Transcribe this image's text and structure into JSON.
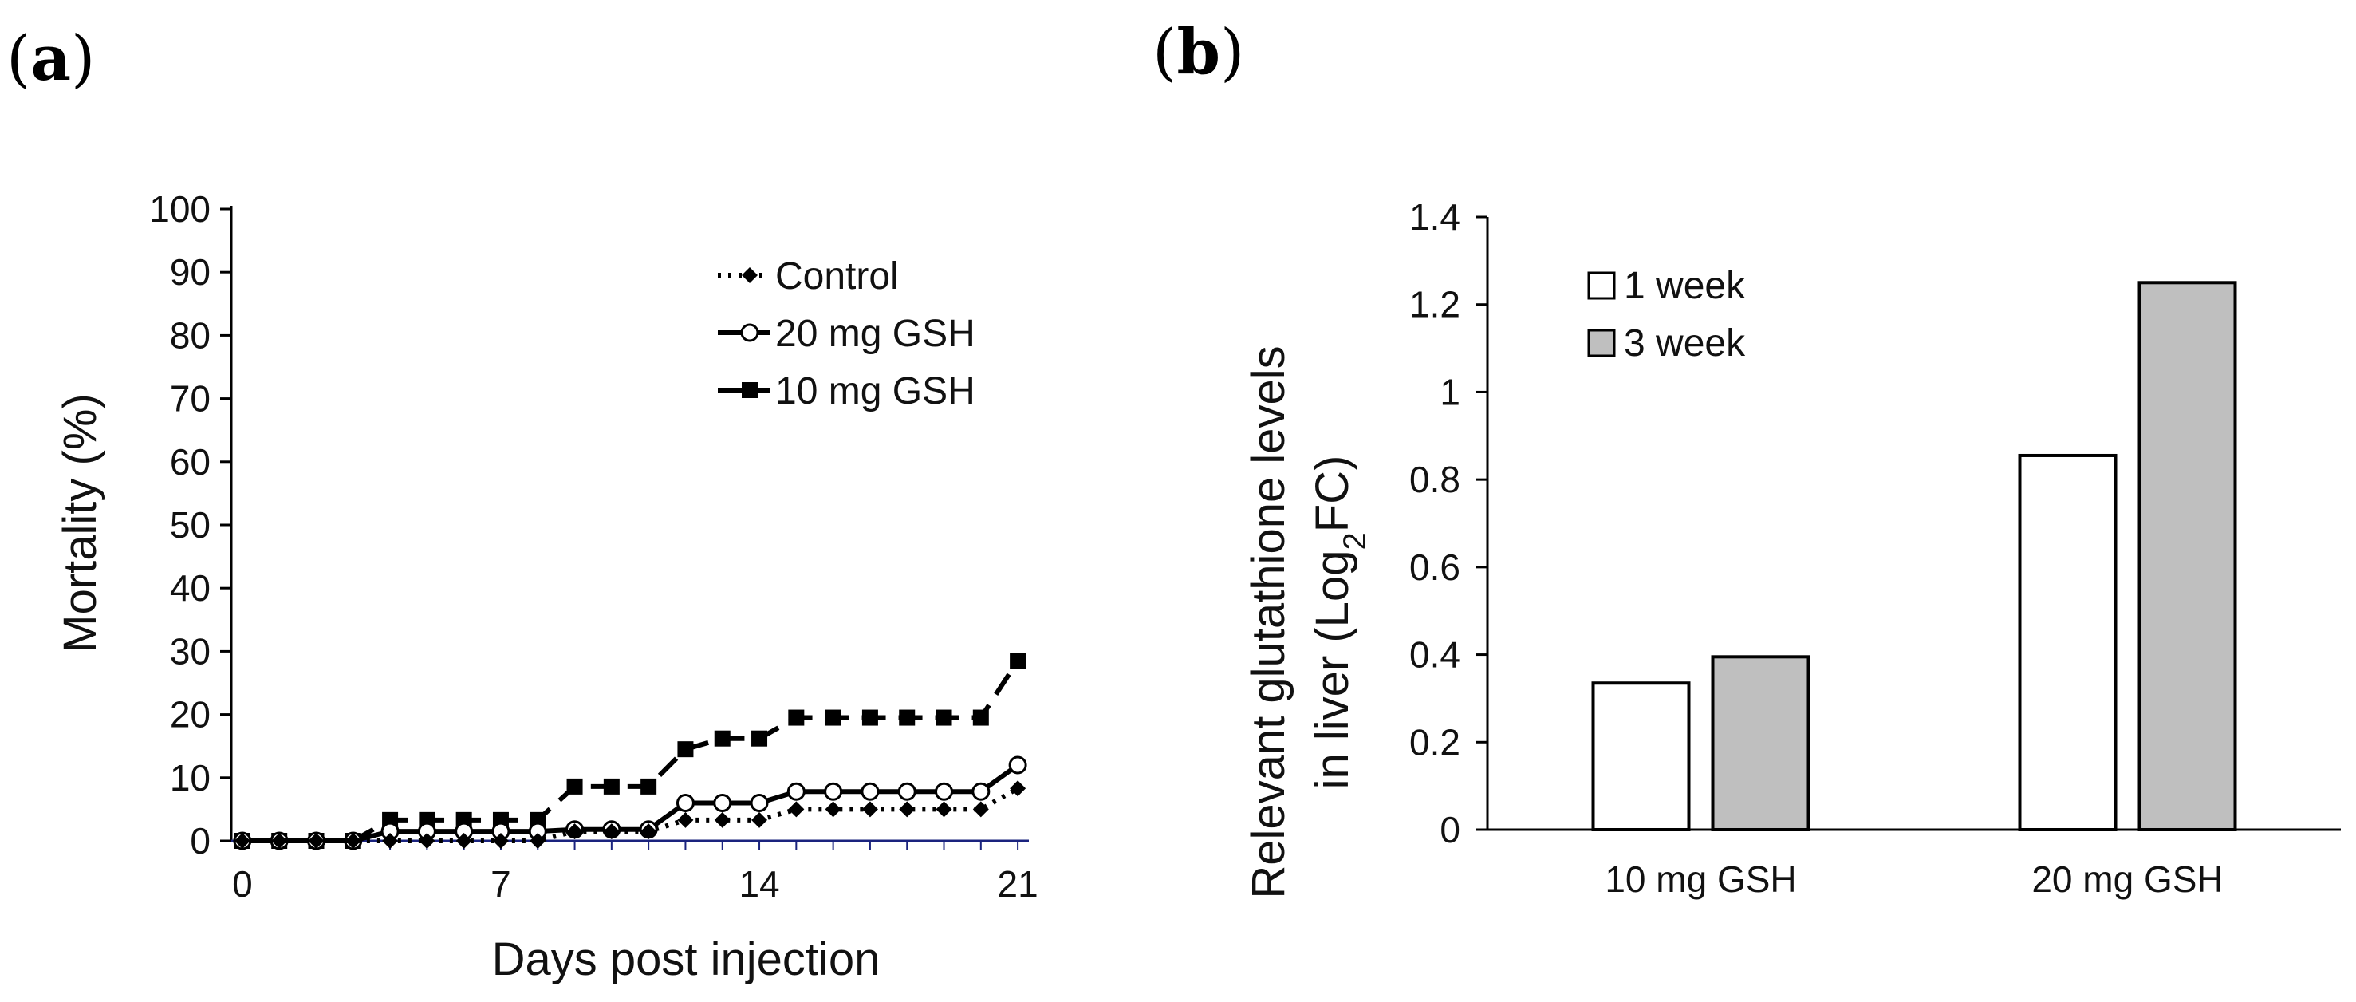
{
  "chart_data": [
    {
      "panel_label": "a",
      "type": "line",
      "xlabel": "Days post injection",
      "ylabel": "Mortality (%)",
      "xlim": [
        -0.3,
        21.3
      ],
      "ylim": [
        0,
        100
      ],
      "xticks": [
        0,
        7,
        14,
        21
      ],
      "yticks": [
        0,
        10,
        20,
        30,
        40,
        50,
        60,
        70,
        80,
        90,
        100
      ],
      "legend_position": "top-right",
      "x": [
        0,
        1,
        2,
        3,
        4,
        5,
        6,
        7,
        8,
        9,
        10,
        11,
        12,
        13,
        14,
        15,
        16,
        17,
        18,
        19,
        20,
        21
      ],
      "series": [
        {
          "name": "Control",
          "style": "dotted",
          "marker": "diamond",
          "values": [
            0,
            0,
            0,
            0,
            0,
            0,
            0,
            0,
            0,
            1.5,
            1.5,
            1.5,
            3.3,
            3.3,
            3.3,
            5,
            5,
            5,
            5,
            5,
            5,
            8.3
          ]
        },
        {
          "name": "20 mg GSH",
          "style": "solid",
          "marker": "circle",
          "values": [
            0,
            0,
            0,
            0,
            1.5,
            1.5,
            1.5,
            1.5,
            1.5,
            1.8,
            1.8,
            1.8,
            6,
            6,
            6,
            7.8,
            7.8,
            7.8,
            7.8,
            7.8,
            7.8,
            12
          ]
        },
        {
          "name": "10 mg GSH",
          "style": "dashed",
          "marker": "square",
          "values": [
            0,
            0,
            0,
            0,
            3.3,
            3.3,
            3.3,
            3.3,
            3.3,
            8.6,
            8.6,
            8.6,
            14.5,
            16.2,
            16.2,
            19.5,
            19.5,
            19.5,
            19.5,
            19.5,
            19.5,
            28.5
          ]
        }
      ]
    },
    {
      "panel_label": "b",
      "type": "bar",
      "ylabel_line1": "Relevant glutathione levels",
      "ylabel_line2_prefix": "in liver (Log",
      "ylabel_line2_sub": "2",
      "ylabel_line2_suffix": "FC)",
      "ylim": [
        0,
        1.4
      ],
      "yticks": [
        "0",
        "0.2",
        "0.4",
        "0.6",
        "0.8",
        "1",
        "1.2",
        "1.4"
      ],
      "categories": [
        "10 mg GSH",
        "20 mg GSH"
      ],
      "legend_position": "top-left",
      "series": [
        {
          "name": "1 week",
          "color": "#ffffff",
          "values": [
            0.335,
            0.855
          ]
        },
        {
          "name": "3 week",
          "color": "#bfbfbf",
          "values": [
            0.395,
            1.25
          ]
        }
      ]
    }
  ]
}
